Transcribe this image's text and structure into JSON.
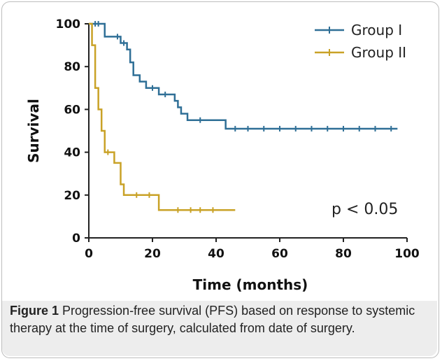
{
  "chart_data": {
    "type": "line",
    "subtype": "kaplan-meier step",
    "xlabel": "Time (months)",
    "ylabel": "Survival",
    "xlim": [
      0,
      100
    ],
    "ylim": [
      0,
      100
    ],
    "xticks": [
      "0",
      "20",
      "40",
      "60",
      "80",
      "100"
    ],
    "yticks": [
      "0",
      "20",
      "40",
      "60",
      "80",
      "100"
    ],
    "legend_position": "top-right",
    "annotation": "p < 0.05",
    "series": [
      {
        "name": "Group I",
        "color": "#2f6f96",
        "steps": [
          [
            0,
            100
          ],
          [
            5,
            94
          ],
          [
            10,
            91
          ],
          [
            12,
            88
          ],
          [
            13,
            82
          ],
          [
            14,
            76
          ],
          [
            16,
            73
          ],
          [
            18,
            70
          ],
          [
            22,
            67
          ],
          [
            27,
            64
          ],
          [
            28,
            61
          ],
          [
            29,
            58
          ],
          [
            31,
            55
          ],
          [
            43,
            51
          ],
          [
            97,
            51
          ]
        ],
        "censor_x": [
          2,
          3,
          9,
          11,
          20,
          24,
          35,
          46,
          50,
          55,
          60,
          65,
          70,
          75,
          80,
          85,
          90,
          95
        ]
      },
      {
        "name": "Group II",
        "color": "#c9a227",
        "steps": [
          [
            0,
            100
          ],
          [
            1,
            90
          ],
          [
            2,
            70
          ],
          [
            3,
            60
          ],
          [
            4,
            50
          ],
          [
            5,
            40
          ],
          [
            8,
            35
          ],
          [
            10,
            25
          ],
          [
            11,
            20
          ],
          [
            12,
            20
          ],
          [
            22,
            13
          ],
          [
            46,
            13
          ]
        ],
        "censor_x": [
          6,
          15,
          19,
          28,
          32,
          35,
          39
        ]
      }
    ]
  },
  "caption": {
    "label": "Figure 1",
    "text": " Progression-free survival (PFS) based on response to systemic therapy at the time of surgery, calculated from date of surgery."
  }
}
